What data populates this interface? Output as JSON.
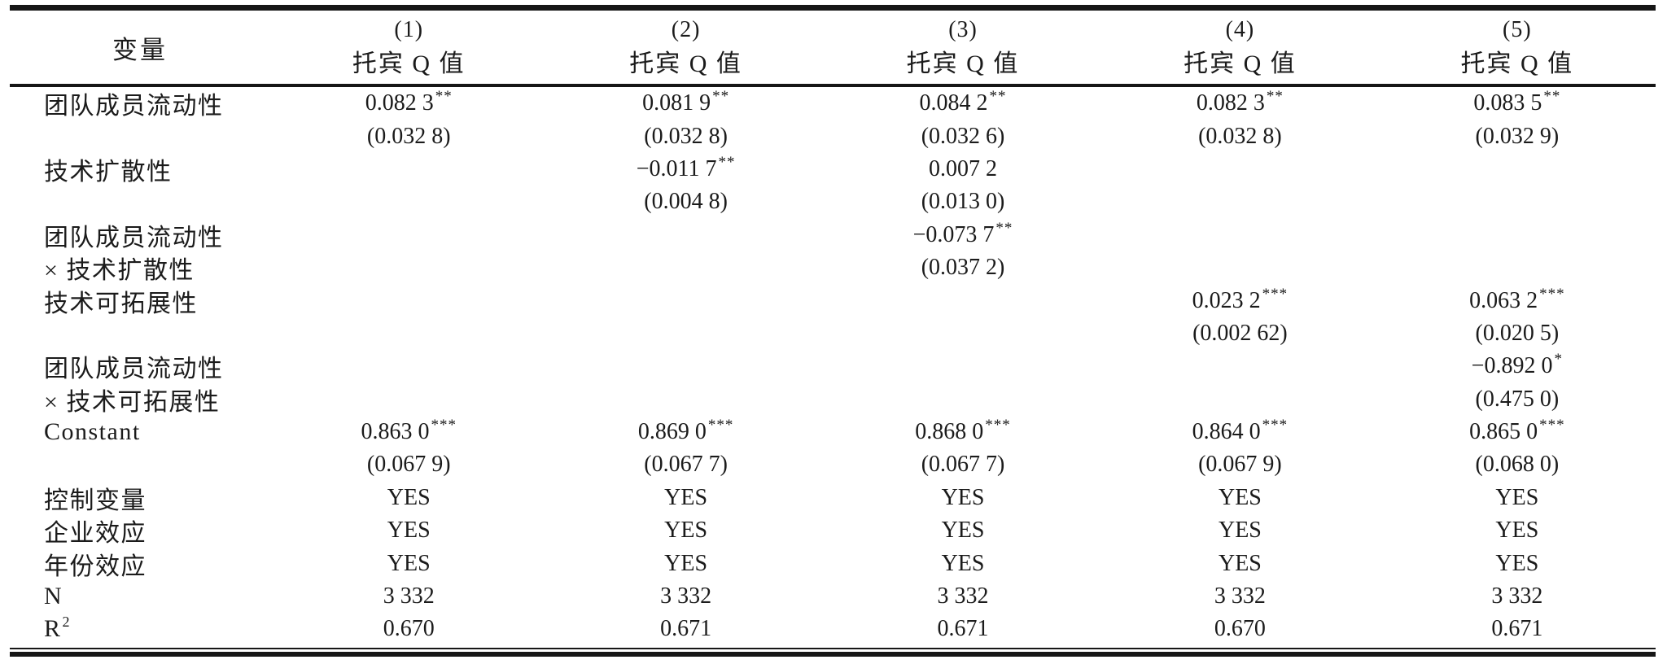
{
  "table": {
    "stub_header": "变量",
    "col_headers": [
      {
        "num": "(1)",
        "label": "托宾 Q 值"
      },
      {
        "num": "(2)",
        "label": "托宾 Q 值"
      },
      {
        "num": "(3)",
        "label": "托宾 Q 值"
      },
      {
        "num": "(4)",
        "label": "托宾 Q 值"
      },
      {
        "num": "(5)",
        "label": "托宾 Q 值"
      }
    ],
    "rows": [
      {
        "stub": "团队成员流动性",
        "cells": [
          {
            "v": "0.082 3",
            "s": "**"
          },
          {
            "v": "0.081 9",
            "s": "**"
          },
          {
            "v": "0.084 2",
            "s": "**"
          },
          {
            "v": "0.082 3",
            "s": "**"
          },
          {
            "v": "0.083 5",
            "s": "**"
          }
        ]
      },
      {
        "stub": "",
        "cells": [
          {
            "v": "(0.032 8)"
          },
          {
            "v": "(0.032 8)"
          },
          {
            "v": "(0.032 6)"
          },
          {
            "v": "(0.032 8)"
          },
          {
            "v": "(0.032 9)"
          }
        ]
      },
      {
        "stub": "技术扩散性",
        "cells": [
          {},
          {
            "v": "−0.011 7",
            "s": "**"
          },
          {
            "v": "0.007 2"
          },
          {},
          {}
        ]
      },
      {
        "stub": "",
        "cells": [
          {},
          {
            "v": "(0.004 8)"
          },
          {
            "v": "(0.013 0)"
          },
          {},
          {}
        ]
      },
      {
        "stub": "团队成员流动性",
        "cells": [
          {},
          {},
          {
            "v": "−0.073 7",
            "s": "**"
          },
          {},
          {}
        ]
      },
      {
        "stub": "× 技术扩散性",
        "cells": [
          {},
          {},
          {
            "v": "(0.037 2)"
          },
          {},
          {}
        ]
      },
      {
        "stub": "技术可拓展性",
        "cells": [
          {},
          {},
          {},
          {
            "v": "0.023 2",
            "s": "***"
          },
          {
            "v": "0.063 2",
            "s": "***"
          }
        ]
      },
      {
        "stub": "",
        "cells": [
          {},
          {},
          {},
          {
            "v": "(0.002 62)"
          },
          {
            "v": "(0.020 5)"
          }
        ]
      },
      {
        "stub": "团队成员流动性",
        "cells": [
          {},
          {},
          {},
          {},
          {
            "v": "−0.892 0",
            "s": "*"
          }
        ]
      },
      {
        "stub": "× 技术可拓展性",
        "cells": [
          {},
          {},
          {},
          {},
          {
            "v": "(0.475 0)"
          }
        ]
      },
      {
        "stub": "Constant",
        "cells": [
          {
            "v": "0.863 0",
            "s": "***"
          },
          {
            "v": "0.869 0",
            "s": "***"
          },
          {
            "v": "0.868 0",
            "s": "***"
          },
          {
            "v": "0.864 0",
            "s": "***"
          },
          {
            "v": "0.865 0",
            "s": "***"
          }
        ]
      },
      {
        "stub": "",
        "cells": [
          {
            "v": "(0.067 9)"
          },
          {
            "v": "(0.067 7)"
          },
          {
            "v": "(0.067 7)"
          },
          {
            "v": "(0.067 9)"
          },
          {
            "v": "(0.068 0)"
          }
        ]
      },
      {
        "stub": "控制变量",
        "cells": [
          {
            "v": "YES"
          },
          {
            "v": "YES"
          },
          {
            "v": "YES"
          },
          {
            "v": "YES"
          },
          {
            "v": "YES"
          }
        ]
      },
      {
        "stub": "企业效应",
        "cells": [
          {
            "v": "YES"
          },
          {
            "v": "YES"
          },
          {
            "v": "YES"
          },
          {
            "v": "YES"
          },
          {
            "v": "YES"
          }
        ]
      },
      {
        "stub": "年份效应",
        "cells": [
          {
            "v": "YES"
          },
          {
            "v": "YES"
          },
          {
            "v": "YES"
          },
          {
            "v": "YES"
          },
          {
            "v": "YES"
          }
        ]
      },
      {
        "stub": "N",
        "cells": [
          {
            "v": "3 332"
          },
          {
            "v": "3 332"
          },
          {
            "v": "3 332"
          },
          {
            "v": "3 332"
          },
          {
            "v": "3 332"
          }
        ]
      },
      {
        "stub": "R",
        "stub_s": "2",
        "cells": [
          {
            "v": "0.670"
          },
          {
            "v": "0.671"
          },
          {
            "v": "0.671"
          },
          {
            "v": "0.670"
          },
          {
            "v": "0.671"
          }
        ]
      }
    ]
  }
}
